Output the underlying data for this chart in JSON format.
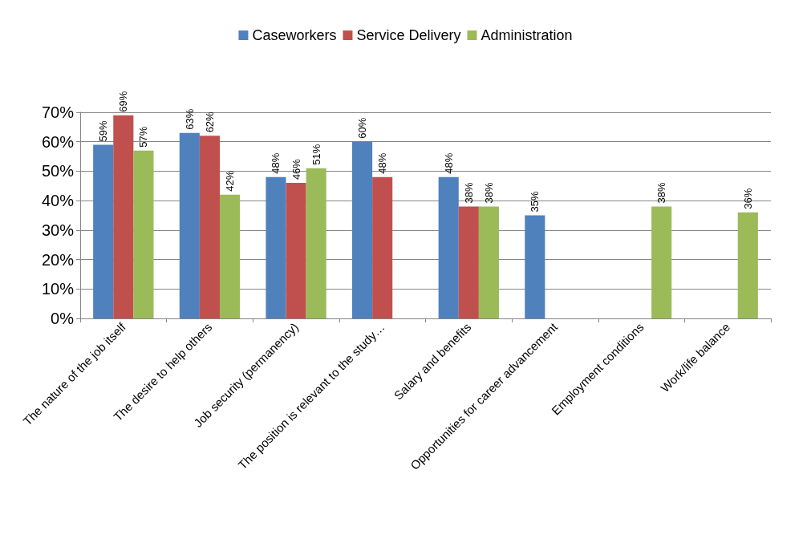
{
  "chart_data": {
    "type": "bar",
    "categories": [
      "The nature of the job itself",
      "The desire to help others",
      "Job security (permanency)",
      "The position is relevant to the study…",
      "Salary and benefits",
      "Opportunities for career advancement",
      "Employment conditions",
      "Work/life balance"
    ],
    "series": [
      {
        "name": "Caseworkers",
        "color": "#4f81bd",
        "values": [
          59,
          63,
          48,
          60,
          48,
          35,
          null,
          null
        ],
        "value_labels": [
          "59%",
          "63%",
          "48%",
          "60%",
          "48%",
          "35%",
          null,
          null
        ]
      },
      {
        "name": "Service Delivery",
        "color": "#c0504d",
        "values": [
          69,
          62,
          46,
          48,
          38,
          null,
          null,
          null
        ],
        "value_labels": [
          "69%",
          "62%",
          "46%",
          "48%",
          "38%",
          null,
          null,
          null
        ]
      },
      {
        "name": "Administration",
        "color": "#9bbb59",
        "values": [
          57,
          42,
          51,
          null,
          38,
          null,
          38,
          36
        ],
        "value_labels": [
          "57%",
          "42%",
          "51%",
          null,
          "38%",
          null,
          "38%",
          "36%"
        ]
      }
    ],
    "ylim": [
      0,
      70
    ],
    "yticks": [
      {
        "value": 0,
        "label": "0%"
      },
      {
        "value": 10,
        "label": "10%"
      },
      {
        "value": 20,
        "label": "20%"
      },
      {
        "value": 30,
        "label": "30%"
      },
      {
        "value": 40,
        "label": "40%"
      },
      {
        "value": 50,
        "label": "50%"
      },
      {
        "value": 60,
        "label": "60%"
      },
      {
        "value": 70,
        "label": "70%"
      }
    ],
    "grid": "y",
    "legend": "top"
  }
}
